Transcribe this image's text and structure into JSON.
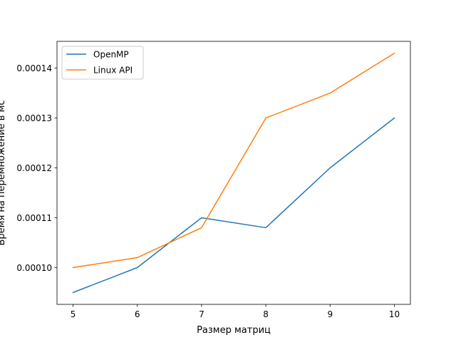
{
  "chart_data": {
    "type": "line",
    "x": [
      5,
      6,
      7,
      8,
      9,
      10
    ],
    "series": [
      {
        "name": "OpenMP",
        "color": "#1f77b4",
        "values": [
          9.5e-05,
          0.0001,
          0.00011,
          0.000108,
          0.00012,
          0.00013
        ]
      },
      {
        "name": "Linux API",
        "color": "#ff7f0e",
        "values": [
          0.0001,
          0.000102,
          0.000108,
          0.00013,
          0.000135,
          0.000143
        ]
      }
    ],
    "xlabel": "Размер матриц",
    "ylabel": "Время на перемножение в мс",
    "xlim": [
      4.75,
      10.25
    ],
    "ylim": [
      9.262e-05,
      0.00014538
    ],
    "xticks": [
      5,
      6,
      7,
      8,
      9,
      10
    ],
    "xtick_labels": [
      "5",
      "6",
      "7",
      "8",
      "9",
      "10"
    ],
    "yticks": [
      0.0001,
      0.00011,
      0.00012,
      0.00013,
      0.00014
    ],
    "ytick_labels": [
      "0.00010",
      "0.00011",
      "0.00012",
      "0.00013",
      "0.00014"
    ],
    "legend_position": "upper-left",
    "grid": false
  }
}
